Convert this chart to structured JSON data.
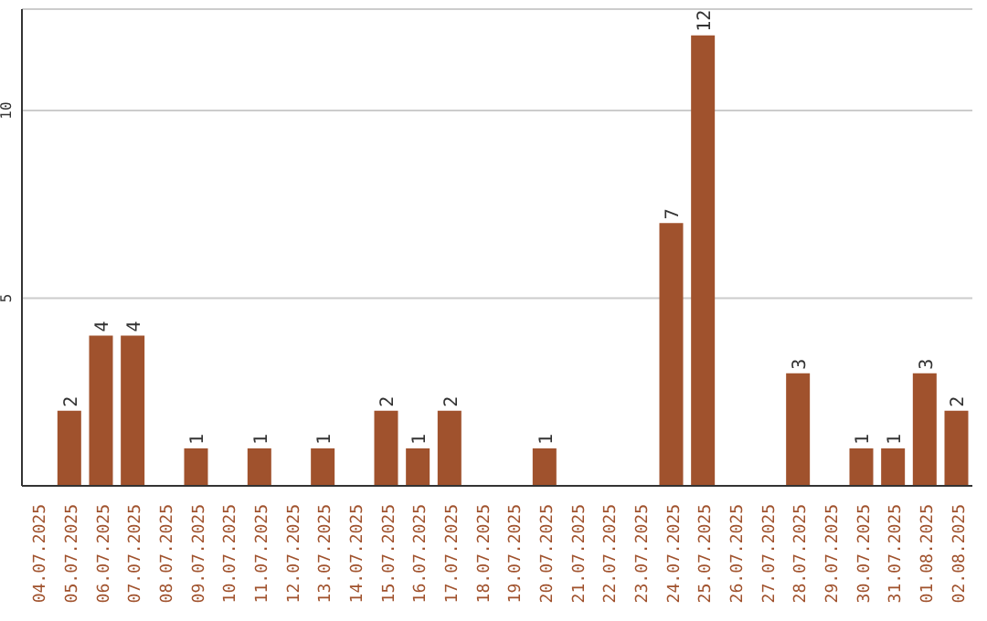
{
  "chart_data": {
    "type": "bar",
    "categories": [
      "04.07.2025",
      "05.07.2025",
      "06.07.2025",
      "07.07.2025",
      "08.07.2025",
      "09.07.2025",
      "10.07.2025",
      "11.07.2025",
      "12.07.2025",
      "13.07.2025",
      "14.07.2025",
      "15.07.2025",
      "16.07.2025",
      "17.07.2025",
      "18.07.2025",
      "19.07.2025",
      "20.07.2025",
      "21.07.2025",
      "22.07.2025",
      "23.07.2025",
      "24.07.2025",
      "25.07.2025",
      "26.07.2025",
      "27.07.2025",
      "28.07.2025",
      "29.07.2025",
      "30.07.2025",
      "31.07.2025",
      "01.08.2025",
      "02.08.2025"
    ],
    "values": [
      0,
      2,
      4,
      4,
      0,
      1,
      0,
      1,
      0,
      1,
      0,
      2,
      1,
      2,
      0,
      0,
      1,
      0,
      0,
      0,
      7,
      12,
      0,
      0,
      3,
      0,
      1,
      1,
      3,
      2
    ],
    "value_labels": [
      null,
      "2",
      "4",
      "4",
      null,
      "1",
      null,
      "1",
      null,
      "1",
      null,
      "2",
      "1",
      "2",
      null,
      null,
      "1",
      null,
      null,
      null,
      "7",
      "12",
      null,
      null,
      "3",
      null,
      "1",
      "1",
      "3",
      "2"
    ],
    "color": "#a0522d",
    "ylim": [
      0,
      12.7
    ],
    "yticks": [
      5,
      10
    ],
    "grid": "y"
  }
}
